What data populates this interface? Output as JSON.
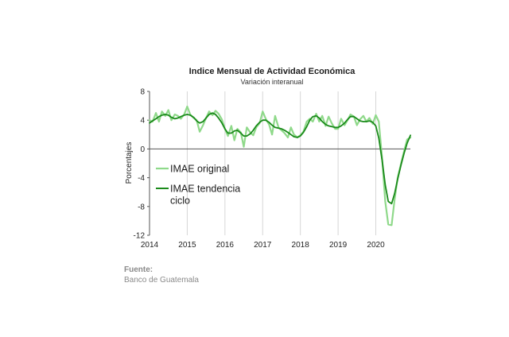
{
  "chart_data": {
    "type": "line",
    "title": "Indice Mensual de  Actividad Económica",
    "subtitle": "Variación interanual",
    "ylabel": "Porcentajes",
    "xlabel": "",
    "ylim": [
      -12,
      8
    ],
    "xlim": [
      2014.0,
      2020.917
    ],
    "yticks": [
      8,
      4,
      0,
      -4,
      -8,
      -12
    ],
    "xticks": [
      2014,
      2015,
      2016,
      2017,
      2018,
      2019,
      2020
    ],
    "grid": "vertical lines at year ticks",
    "legend_position": "left-middle",
    "series": [
      {
        "name": "IMAE original",
        "color": "#8fd98a",
        "values": [
          [
            2014.0,
            4.0
          ],
          [
            2014.08,
            3.8
          ],
          [
            2014.17,
            5.0
          ],
          [
            2014.25,
            3.8
          ],
          [
            2014.33,
            5.2
          ],
          [
            2014.42,
            4.6
          ],
          [
            2014.5,
            5.4
          ],
          [
            2014.58,
            4.0
          ],
          [
            2014.67,
            4.8
          ],
          [
            2014.75,
            4.6
          ],
          [
            2014.83,
            4.2
          ],
          [
            2014.92,
            4.8
          ],
          [
            2015.0,
            5.9
          ],
          [
            2015.08,
            4.8
          ],
          [
            2015.17,
            4.3
          ],
          [
            2015.25,
            4.0
          ],
          [
            2015.33,
            2.4
          ],
          [
            2015.42,
            3.3
          ],
          [
            2015.5,
            4.3
          ],
          [
            2015.58,
            5.2
          ],
          [
            2015.67,
            4.7
          ],
          [
            2015.75,
            5.3
          ],
          [
            2015.83,
            4.9
          ],
          [
            2015.92,
            4.1
          ],
          [
            2016.0,
            2.8
          ],
          [
            2016.08,
            1.8
          ],
          [
            2016.17,
            3.2
          ],
          [
            2016.25,
            1.2
          ],
          [
            2016.33,
            2.8
          ],
          [
            2016.42,
            2.3
          ],
          [
            2016.5,
            0.3
          ],
          [
            2016.58,
            3.0
          ],
          [
            2016.67,
            2.3
          ],
          [
            2016.75,
            1.9
          ],
          [
            2016.83,
            3.0
          ],
          [
            2016.92,
            3.6
          ],
          [
            2017.0,
            5.2
          ],
          [
            2017.08,
            4.2
          ],
          [
            2017.17,
            3.4
          ],
          [
            2017.25,
            2.0
          ],
          [
            2017.33,
            4.6
          ],
          [
            2017.42,
            3.0
          ],
          [
            2017.5,
            2.6
          ],
          [
            2017.58,
            2.2
          ],
          [
            2017.67,
            1.6
          ],
          [
            2017.75,
            3.0
          ],
          [
            2017.83,
            2.0
          ],
          [
            2017.92,
            1.6
          ],
          [
            2018.0,
            1.9
          ],
          [
            2018.08,
            2.4
          ],
          [
            2018.17,
            3.8
          ],
          [
            2018.25,
            4.2
          ],
          [
            2018.33,
            3.8
          ],
          [
            2018.42,
            4.9
          ],
          [
            2018.5,
            3.8
          ],
          [
            2018.58,
            4.6
          ],
          [
            2018.67,
            3.2
          ],
          [
            2018.75,
            4.5
          ],
          [
            2018.83,
            3.6
          ],
          [
            2018.92,
            2.8
          ],
          [
            2019.0,
            2.8
          ],
          [
            2019.08,
            4.2
          ],
          [
            2019.17,
            3.3
          ],
          [
            2019.25,
            4.0
          ],
          [
            2019.33,
            4.8
          ],
          [
            2019.42,
            4.5
          ],
          [
            2019.5,
            3.3
          ],
          [
            2019.58,
            4.1
          ],
          [
            2019.67,
            4.6
          ],
          [
            2019.75,
            3.8
          ],
          [
            2019.83,
            4.3
          ],
          [
            2019.92,
            3.5
          ],
          [
            2020.0,
            4.7
          ],
          [
            2020.08,
            3.8
          ],
          [
            2020.17,
            -1.5
          ],
          [
            2020.25,
            -7.3
          ],
          [
            2020.33,
            -10.5
          ],
          [
            2020.42,
            -10.6
          ],
          [
            2020.5,
            -7.0
          ],
          [
            2020.58,
            -4.0
          ],
          [
            2020.67,
            -2.0
          ],
          [
            2020.75,
            -0.3
          ],
          [
            2020.83,
            1.3
          ],
          [
            2020.92,
            1.6
          ]
        ]
      },
      {
        "name": "IMAE tendencia ciclo",
        "color": "#1a8a1a",
        "values": [
          [
            2014.0,
            3.6
          ],
          [
            2014.08,
            3.9
          ],
          [
            2014.17,
            4.2
          ],
          [
            2014.25,
            4.5
          ],
          [
            2014.33,
            4.7
          ],
          [
            2014.42,
            4.8
          ],
          [
            2014.5,
            4.7
          ],
          [
            2014.58,
            4.4
          ],
          [
            2014.67,
            4.2
          ],
          [
            2014.75,
            4.3
          ],
          [
            2014.83,
            4.5
          ],
          [
            2014.92,
            4.7
          ],
          [
            2015.0,
            4.8
          ],
          [
            2015.08,
            4.7
          ],
          [
            2015.17,
            4.4
          ],
          [
            2015.25,
            3.9
          ],
          [
            2015.33,
            3.6
          ],
          [
            2015.42,
            3.8
          ],
          [
            2015.5,
            4.3
          ],
          [
            2015.58,
            4.8
          ],
          [
            2015.67,
            5.0
          ],
          [
            2015.75,
            4.8
          ],
          [
            2015.83,
            4.3
          ],
          [
            2015.92,
            3.6
          ],
          [
            2016.0,
            2.8
          ],
          [
            2016.08,
            2.2
          ],
          [
            2016.17,
            2.2
          ],
          [
            2016.25,
            2.5
          ],
          [
            2016.33,
            2.6
          ],
          [
            2016.42,
            2.2
          ],
          [
            2016.5,
            1.8
          ],
          [
            2016.58,
            1.8
          ],
          [
            2016.67,
            2.1
          ],
          [
            2016.75,
            2.6
          ],
          [
            2016.83,
            3.2
          ],
          [
            2016.92,
            3.7
          ],
          [
            2017.0,
            4.0
          ],
          [
            2017.08,
            4.0
          ],
          [
            2017.17,
            3.7
          ],
          [
            2017.25,
            3.3
          ],
          [
            2017.33,
            3.0
          ],
          [
            2017.42,
            2.9
          ],
          [
            2017.5,
            2.8
          ],
          [
            2017.58,
            2.6
          ],
          [
            2017.67,
            2.3
          ],
          [
            2017.75,
            2.0
          ],
          [
            2017.83,
            1.7
          ],
          [
            2017.92,
            1.6
          ],
          [
            2018.0,
            1.8
          ],
          [
            2018.08,
            2.3
          ],
          [
            2018.17,
            3.1
          ],
          [
            2018.25,
            4.0
          ],
          [
            2018.33,
            4.5
          ],
          [
            2018.42,
            4.6
          ],
          [
            2018.5,
            4.3
          ],
          [
            2018.58,
            3.8
          ],
          [
            2018.67,
            3.4
          ],
          [
            2018.75,
            3.2
          ],
          [
            2018.83,
            3.1
          ],
          [
            2018.92,
            3.0
          ],
          [
            2019.0,
            3.0
          ],
          [
            2019.08,
            3.2
          ],
          [
            2019.17,
            3.6
          ],
          [
            2019.25,
            4.1
          ],
          [
            2019.33,
            4.5
          ],
          [
            2019.42,
            4.5
          ],
          [
            2019.5,
            4.2
          ],
          [
            2019.58,
            3.9
          ],
          [
            2019.67,
            3.8
          ],
          [
            2019.75,
            3.8
          ],
          [
            2019.83,
            3.9
          ],
          [
            2019.92,
            3.7
          ],
          [
            2020.0,
            3.2
          ],
          [
            2020.08,
            1.5
          ],
          [
            2020.17,
            -1.7
          ],
          [
            2020.25,
            -5.0
          ],
          [
            2020.33,
            -7.3
          ],
          [
            2020.42,
            -7.6
          ],
          [
            2020.5,
            -6.2
          ],
          [
            2020.58,
            -4.2
          ],
          [
            2020.67,
            -2.2
          ],
          [
            2020.75,
            -0.6
          ],
          [
            2020.83,
            0.8
          ],
          [
            2020.92,
            1.9
          ]
        ]
      }
    ]
  },
  "source": {
    "label": "Fuente:",
    "text": "Banco de Guatemala"
  }
}
